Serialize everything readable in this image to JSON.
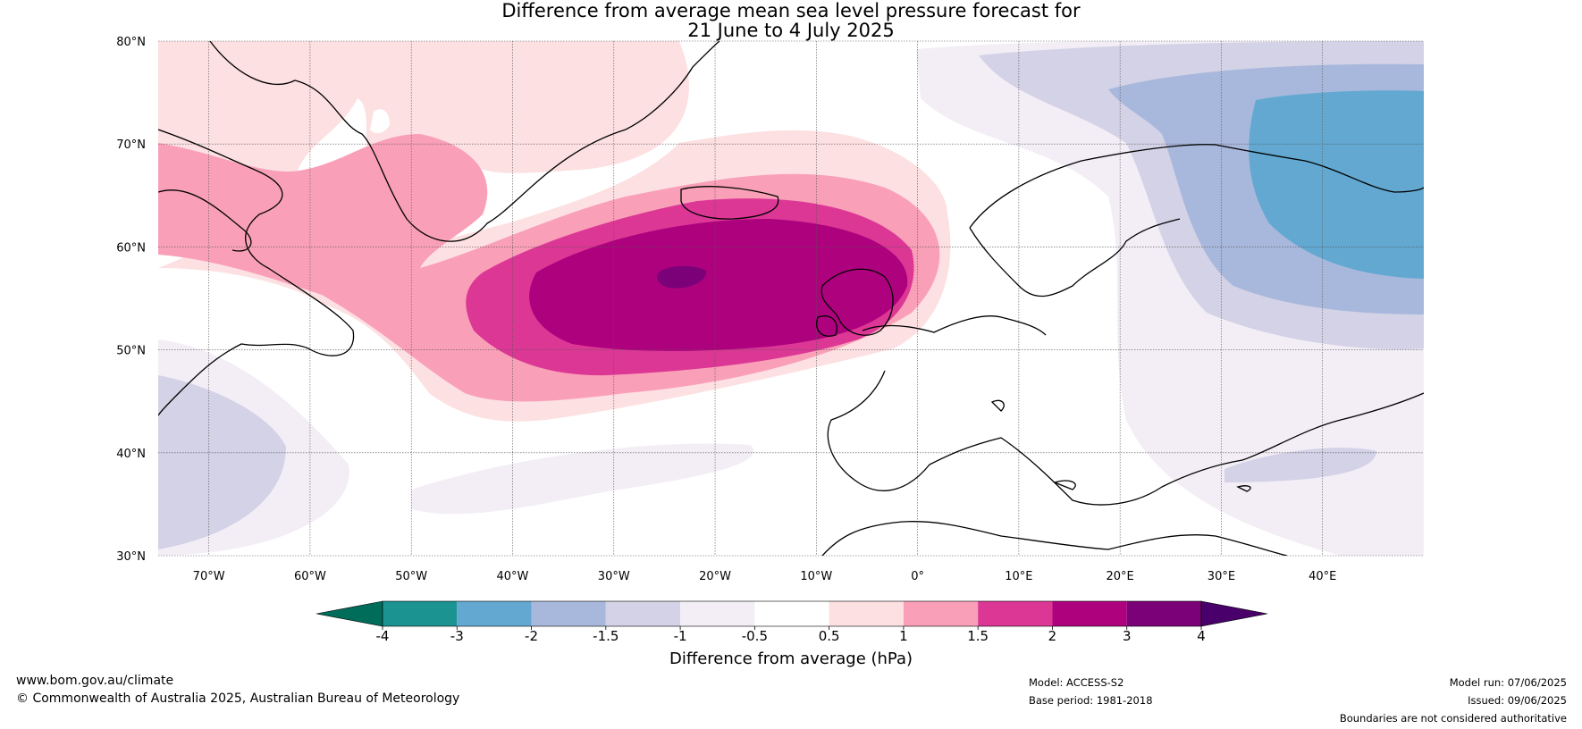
{
  "title": {
    "line1": "Difference from average mean sea level pressure forecast for",
    "line2": "21 June to 4 July 2025"
  },
  "map": {
    "lat_ticks": [
      "80°N",
      "70°N",
      "60°N",
      "50°N",
      "40°N",
      "30°N"
    ],
    "lon_ticks": [
      "70°W",
      "60°W",
      "50°W",
      "40°W",
      "30°W",
      "20°W",
      "10°W",
      "0°",
      "10°E",
      "20°E",
      "30°E",
      "40°E"
    ],
    "lat_range": [
      30,
      80
    ],
    "lon_range": [
      -75,
      50
    ],
    "grid": true
  },
  "colorbar": {
    "title": "Difference from average (hPa)",
    "tick_labels": [
      "-4",
      "-3",
      "-2",
      "-1.5",
      "-1",
      "-0.5",
      "0.5",
      "1",
      "1.5",
      "2",
      "3",
      "4"
    ],
    "bins": [
      {
        "color": "#006d5b"
      },
      {
        "color": "#1a9391"
      },
      {
        "color": "#62a8d1"
      },
      {
        "color": "#a8b8dc"
      },
      {
        "color": "#d3d2e6"
      },
      {
        "color": "#f3eef6"
      },
      {
        "color": "#ffffff"
      },
      {
        "color": "#fde0e1"
      },
      {
        "color": "#f9a0b8"
      },
      {
        "color": "#dc3795"
      },
      {
        "color": "#ae017e"
      },
      {
        "color": "#7a0177"
      },
      {
        "color": "#49006a"
      }
    ]
  },
  "footer": {
    "website": "www.bom.gov.au/climate",
    "copyright": "© Commonwealth of Australia 2025, Australian Bureau of Meteorology",
    "model": "Model: ACCESS-S2",
    "base_period": "Base period: 1981-2018",
    "model_run": "Model run: 07/06/2025",
    "issued": "Issued: 09/06/2025",
    "disclaimer": "Boundaries are not considered authoritative"
  }
}
